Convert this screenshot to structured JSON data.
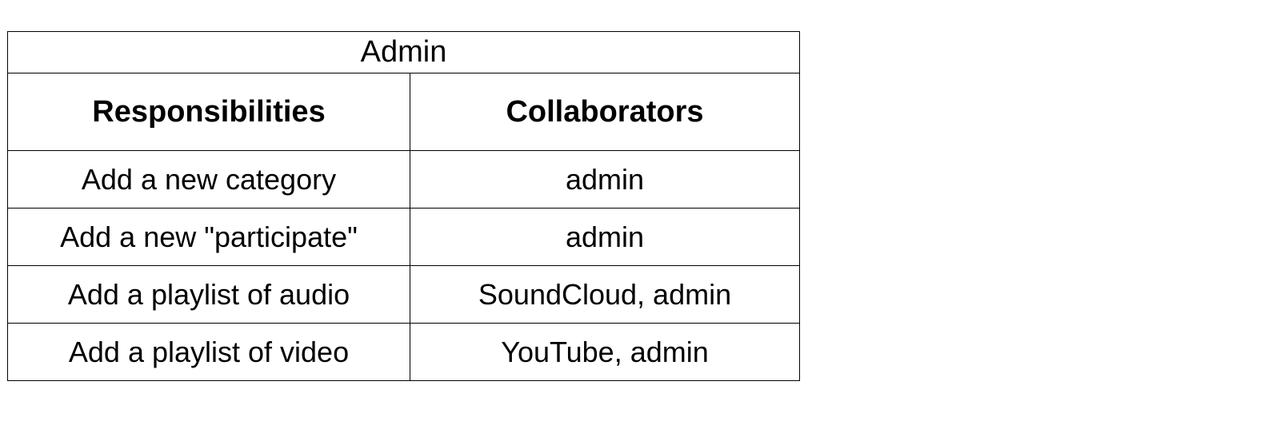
{
  "card": {
    "title": "Admin",
    "headers": {
      "responsibilities": "Responsibilities",
      "collaborators": "Collaborators"
    },
    "rows": [
      {
        "responsibility": "Add a new category",
        "collaborators": "admin"
      },
      {
        "responsibility": "Add a new \"participate\"",
        "collaborators": "admin"
      },
      {
        "responsibility": "Add a playlist of audio",
        "collaborators": "SoundCloud, admin"
      },
      {
        "responsibility": "Add a playlist of video",
        "collaborators": "YouTube, admin"
      }
    ]
  }
}
